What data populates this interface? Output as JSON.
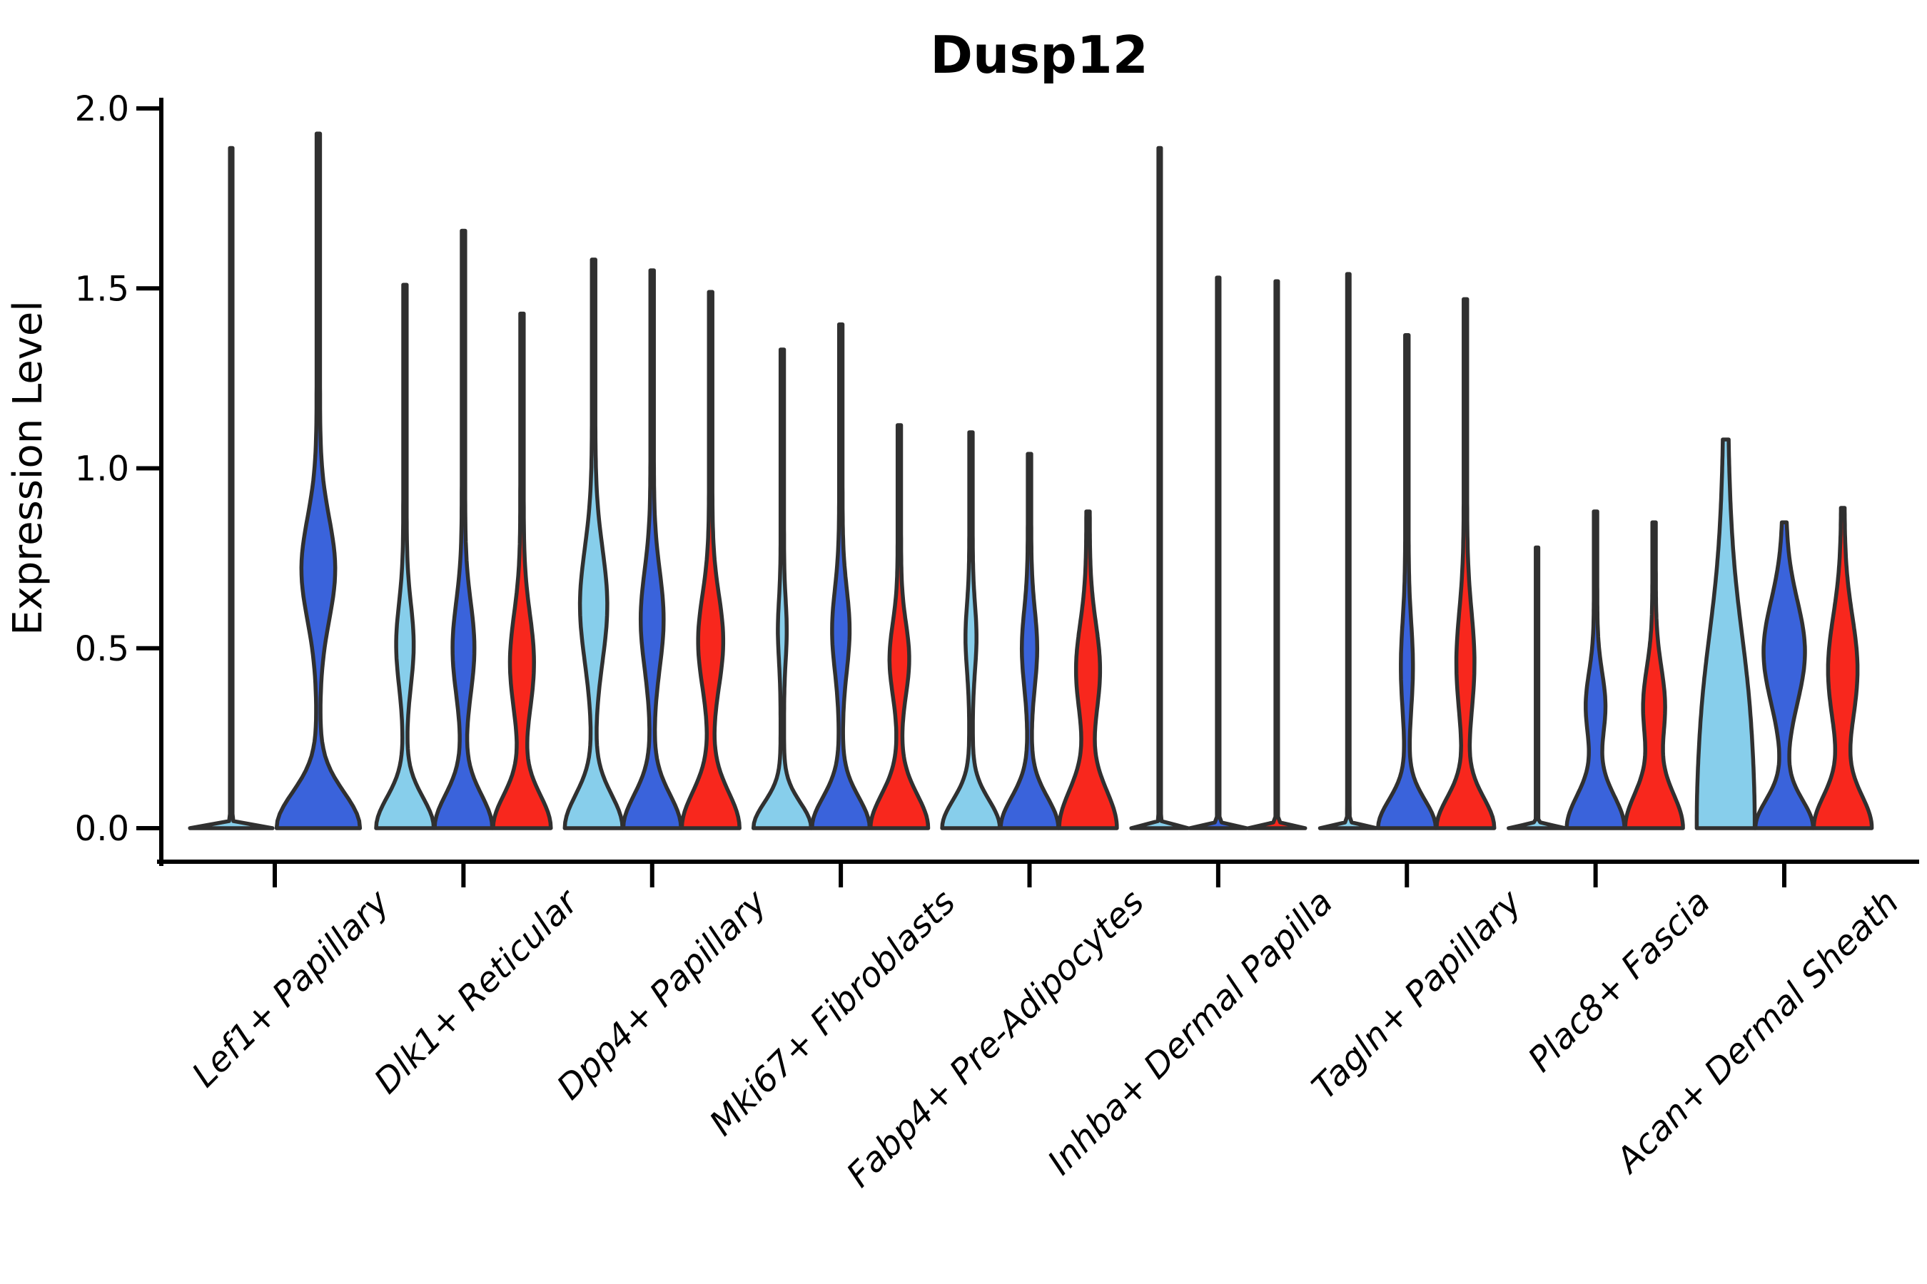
{
  "title": "Dusp12",
  "y_axis": {
    "label": "Expression Level"
  },
  "splits": {
    "lightblue": "#87CEEB",
    "blue": "#3A63DB",
    "red": "#F8271D"
  },
  "outline_color": "#303030",
  "axis_color": "#000000",
  "chart_data": {
    "type": "violin",
    "title": "Dusp12",
    "xlabel": "",
    "ylabel": "Expression Level",
    "ylim": [
      0.0,
      2.0
    ],
    "yticks": [
      0.0,
      0.5,
      1.0,
      1.5,
      2.0
    ],
    "ytick_labels": [
      "0.0",
      "0.5",
      "1.0",
      "1.5",
      "2.0"
    ],
    "grid": false,
    "legend": "none",
    "categories": [
      "Lef1+ Papillary",
      "Dlk1+ Reticular",
      "Dpp4+ Papillary",
      "Mki67+ Fibroblasts",
      "Fabp4+ Pre-Adipocytes",
      "Inhba+ Dermal Papilla",
      "Tagln+ Papillary",
      "Plac8+ Fascia",
      "Acan+ Dermal Sheath"
    ],
    "series_colors": {
      "lightblue": "#87CEEB",
      "blue": "#3A63DB",
      "red": "#F8271D"
    },
    "groups": [
      {
        "category": "Lef1+ Papillary",
        "violins": [
          {
            "split": "lightblue",
            "flat": true,
            "max": 1.89
          },
          {
            "split": "blue",
            "flat": false,
            "max": 1.93,
            "bulge_center": 0.72,
            "bulge_sigma": 0.2,
            "bulge_amp": 0.38,
            "base_rise": 0.14
          }
        ]
      },
      {
        "category": "Dlk1+ Reticular",
        "violins": [
          {
            "split": "lightblue",
            "flat": false,
            "max": 1.51,
            "bulge_center": 0.51,
            "bulge_sigma": 0.16,
            "bulge_amp": 0.26,
            "base_rise": 0.12
          },
          {
            "split": "blue",
            "flat": false,
            "max": 1.66,
            "bulge_center": 0.5,
            "bulge_sigma": 0.18,
            "bulge_amp": 0.34,
            "base_rise": 0.13
          },
          {
            "split": "red",
            "flat": false,
            "max": 1.43,
            "bulge_center": 0.46,
            "bulge_sigma": 0.19,
            "bulge_amp": 0.38,
            "base_rise": 0.13
          }
        ]
      },
      {
        "category": "Dpp4+ Papillary",
        "violins": [
          {
            "split": "lightblue",
            "flat": false,
            "max": 1.58,
            "bulge_center": 0.62,
            "bulge_sigma": 0.22,
            "bulge_amp": 0.44,
            "base_rise": 0.13
          },
          {
            "split": "blue",
            "flat": false,
            "max": 1.55,
            "bulge_center": 0.58,
            "bulge_sigma": 0.19,
            "bulge_amp": 0.36,
            "base_rise": 0.13
          },
          {
            "split": "red",
            "flat": false,
            "max": 1.49,
            "bulge_center": 0.52,
            "bulge_sigma": 0.18,
            "bulge_amp": 0.4,
            "base_rise": 0.14
          }
        ]
      },
      {
        "category": "Mki67+ Fibroblasts",
        "violins": [
          {
            "split": "lightblue",
            "flat": false,
            "max": 1.33,
            "bulge_center": 0.55,
            "bulge_sigma": 0.12,
            "bulge_amp": 0.1,
            "base_rise": 0.1
          },
          {
            "split": "blue",
            "flat": false,
            "max": 1.4,
            "bulge_center": 0.55,
            "bulge_sigma": 0.16,
            "bulge_amp": 0.26,
            "base_rise": 0.12
          },
          {
            "split": "red",
            "flat": false,
            "max": 1.12,
            "bulge_center": 0.47,
            "bulge_sigma": 0.14,
            "bulge_amp": 0.3,
            "base_rise": 0.13
          }
        ]
      },
      {
        "category": "Fabp4+ Pre-Adipocytes",
        "violins": [
          {
            "split": "lightblue",
            "flat": false,
            "max": 1.1,
            "bulge_center": 0.53,
            "bulge_sigma": 0.13,
            "bulge_amp": 0.14,
            "base_rise": 0.11
          },
          {
            "split": "blue",
            "flat": false,
            "max": 1.04,
            "bulge_center": 0.5,
            "bulge_sigma": 0.15,
            "bulge_amp": 0.22,
            "base_rise": 0.12
          },
          {
            "split": "red",
            "flat": false,
            "max": 0.88,
            "bulge_center": 0.44,
            "bulge_sigma": 0.18,
            "bulge_amp": 0.38,
            "base_rise": 0.15
          }
        ]
      },
      {
        "category": "Inhba+ Dermal Papilla",
        "violins": [
          {
            "split": "lightblue",
            "flat": true,
            "max": 1.89
          },
          {
            "split": "blue",
            "flat": true,
            "max": 1.53
          },
          {
            "split": "red",
            "flat": true,
            "max": 1.52
          }
        ]
      },
      {
        "category": "Tagln+ Papillary",
        "violins": [
          {
            "split": "lightblue",
            "flat": true,
            "max": 1.54
          },
          {
            "split": "blue",
            "flat": false,
            "max": 1.37,
            "bulge_center": 0.45,
            "bulge_sigma": 0.17,
            "bulge_amp": 0.16,
            "base_rise": 0.11
          },
          {
            "split": "red",
            "flat": false,
            "max": 1.47,
            "bulge_center": 0.46,
            "bulge_sigma": 0.2,
            "bulge_amp": 0.27,
            "base_rise": 0.12
          }
        ]
      },
      {
        "category": "Plac8+ Fascia",
        "violins": [
          {
            "split": "lightblue",
            "flat": true,
            "max": 0.78
          },
          {
            "split": "blue",
            "flat": false,
            "max": 0.88,
            "bulge_center": 0.34,
            "bulge_sigma": 0.13,
            "bulge_amp": 0.3,
            "base_rise": 0.13
          },
          {
            "split": "red",
            "flat": false,
            "max": 0.85,
            "bulge_center": 0.34,
            "bulge_sigma": 0.15,
            "bulge_amp": 0.34,
            "base_rise": 0.14
          }
        ]
      },
      {
        "category": "Acan+ Dermal Sheath",
        "violins": [
          {
            "split": "lightblue",
            "flat": false,
            "max": 1.08,
            "bulge_center": 0.42,
            "bulge_sigma": 0.24,
            "bulge_amp": 0.1,
            "base_rise": 0.61
          },
          {
            "split": "blue",
            "flat": false,
            "max": 0.85,
            "bulge_center": 0.49,
            "bulge_sigma": 0.2,
            "bulge_amp": 0.7,
            "base_rise": 0.11
          },
          {
            "split": "red",
            "flat": false,
            "max": 0.89,
            "bulge_center": 0.44,
            "bulge_sigma": 0.21,
            "bulge_amp": 0.48,
            "base_rise": 0.13
          }
        ]
      }
    ]
  }
}
